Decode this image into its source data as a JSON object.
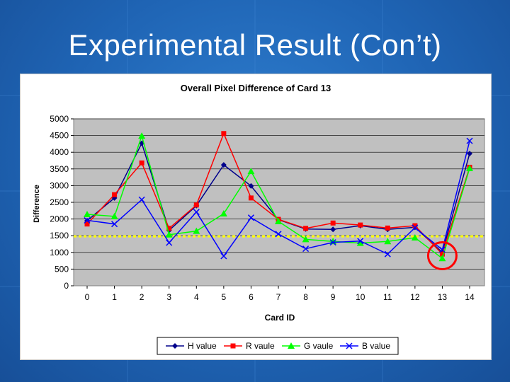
{
  "slide": {
    "title": "Experimental Result (Con’t)"
  },
  "colors": {
    "background": "#1f64b4",
    "plot_area": "#c0c0c0",
    "threshold": "#ffff00",
    "highlight": "#ff0000"
  },
  "chart_data": {
    "type": "line",
    "title": "Overall Pixel Difference of Card 13",
    "xlabel": "Card ID",
    "ylabel": "Difference",
    "categories": [
      0,
      1,
      2,
      3,
      4,
      5,
      6,
      7,
      8,
      9,
      10,
      11,
      12,
      13,
      14
    ],
    "ylim": [
      0,
      5000
    ],
    "yticks": [
      0,
      500,
      1000,
      1500,
      2000,
      2500,
      3000,
      3500,
      4000,
      4500,
      5000
    ],
    "grid": true,
    "legend_position": "bottom",
    "threshold": 1480,
    "highlight_category": 13,
    "series": [
      {
        "name": "H value",
        "color": "#00008b",
        "marker": "diamond",
        "values": [
          1950,
          2630,
          4270,
          1660,
          2400,
          3620,
          2990,
          1980,
          1700,
          1690,
          1800,
          1690,
          1750,
          1000,
          3960
        ]
      },
      {
        "name": "R vaule",
        "color": "#ff0000",
        "marker": "square",
        "values": [
          1850,
          2730,
          3680,
          1720,
          2420,
          4560,
          2630,
          1990,
          1720,
          1880,
          1820,
          1730,
          1800,
          950,
          3550
        ]
      },
      {
        "name": "G vaule",
        "color": "#00ff00",
        "marker": "triangle",
        "values": [
          2140,
          2080,
          4490,
          1530,
          1640,
          2160,
          3430,
          1930,
          1390,
          1330,
          1280,
          1330,
          1440,
          820,
          3520
        ]
      },
      {
        "name": "B value",
        "color": "#0000ff",
        "marker": "x",
        "values": [
          1960,
          1850,
          2580,
          1290,
          2210,
          890,
          2040,
          1550,
          1110,
          1300,
          1340,
          950,
          1740,
          1080,
          4340
        ]
      }
    ]
  }
}
